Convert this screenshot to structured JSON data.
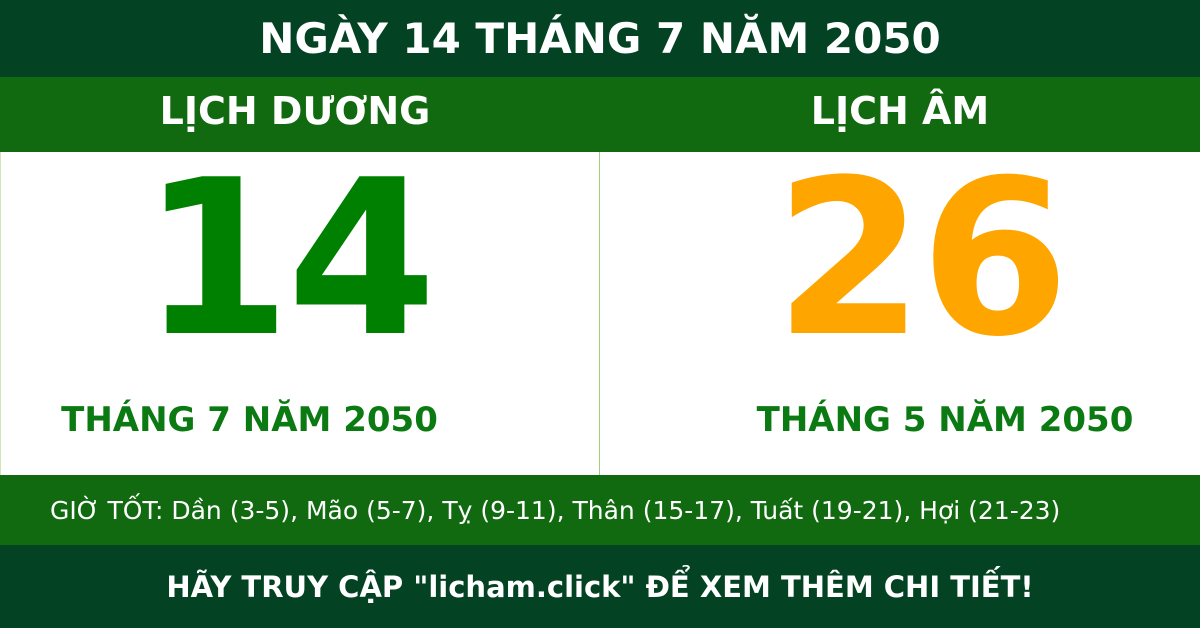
{
  "title": "NGÀY 14 THÁNG 7 NĂM 2050",
  "solar": {
    "label": "LỊCH DƯƠNG",
    "day": "14",
    "month_year": "THÁNG 7 NĂM 2050"
  },
  "lunar": {
    "label": "LỊCH ÂM",
    "day": "26",
    "month_year": "THÁNG 5 NĂM 2050"
  },
  "good_hours": "GIỜ TỐT: Dần (3-5), Mão (5-7), Tỵ (9-11), Thân (15-17), Tuất (19-21), Hợi (21-23)",
  "footer": "HÃY TRUY CẬP \"licham.click\" ĐỂ XEM THÊM CHI TIẾT!",
  "colors": {
    "dark_green": "#034222",
    "green": "#116a10",
    "solar_day": "#008000",
    "lunar_day": "#ffa500"
  }
}
